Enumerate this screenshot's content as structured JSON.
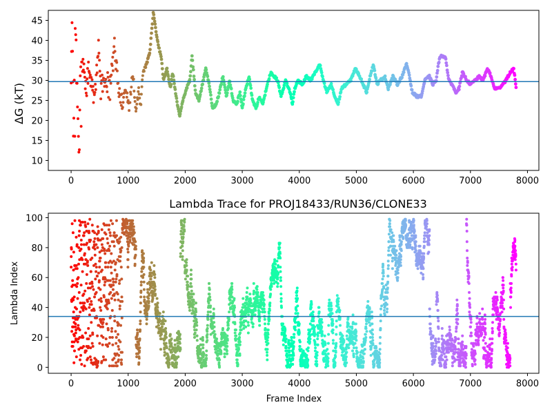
{
  "chart_data": [
    {
      "type": "scatter",
      "title": "",
      "xlabel": "",
      "ylabel": "ΔG (kT)",
      "xlim": [
        -400,
        8200
      ],
      "ylim": [
        7.5,
        47.5
      ],
      "xticks": [
        0,
        1000,
        2000,
        3000,
        4000,
        5000,
        6000,
        7000,
        8000
      ],
      "yticks": [
        10,
        15,
        20,
        25,
        30,
        35,
        40,
        45
      ],
      "hline": 29.7,
      "hline_color": "#1f77b4",
      "colormap": "rainbow (reversed: red at frame 0, violet at last frame)",
      "grid": false,
      "x_max_frame": 7800,
      "trace_keypoints": [
        [
          0,
          32
        ],
        [
          20,
          46
        ],
        [
          40,
          14
        ],
        [
          60,
          36
        ],
        [
          80,
          44
        ],
        [
          100,
          27
        ],
        [
          120,
          20
        ],
        [
          140,
          10
        ],
        [
          160,
          30
        ],
        [
          200,
          34
        ],
        [
          260,
          28
        ],
        [
          320,
          33
        ],
        [
          400,
          25
        ],
        [
          480,
          38
        ],
        [
          520,
          28
        ],
        [
          600,
          32
        ],
        [
          680,
          27
        ],
        [
          760,
          38
        ],
        [
          820,
          30
        ],
        [
          900,
          24
        ],
        [
          960,
          28
        ],
        [
          1020,
          23
        ],
        [
          1080,
          32
        ],
        [
          1140,
          22
        ],
        [
          1180,
          28
        ],
        [
          1220,
          24
        ],
        [
          1260,
          32
        ],
        [
          1320,
          34
        ],
        [
          1380,
          37
        ],
        [
          1440,
          47
        ],
        [
          1500,
          41
        ],
        [
          1540,
          38
        ],
        [
          1580,
          36
        ],
        [
          1620,
          30
        ],
        [
          1680,
          33
        ],
        [
          1740,
          28
        ],
        [
          1780,
          32
        ],
        [
          1840,
          26
        ],
        [
          1900,
          21
        ],
        [
          1960,
          25
        ],
        [
          2020,
          28
        ],
        [
          2080,
          30
        ],
        [
          2120,
          36
        ],
        [
          2180,
          27
        ],
        [
          2240,
          25
        ],
        [
          2300,
          29
        ],
        [
          2360,
          33
        ],
        [
          2420,
          29
        ],
        [
          2480,
          23
        ],
        [
          2540,
          24
        ],
        [
          2600,
          27
        ],
        [
          2660,
          31
        ],
        [
          2720,
          26
        ],
        [
          2780,
          30
        ],
        [
          2840,
          25
        ],
        [
          2900,
          24
        ],
        [
          2960,
          27
        ],
        [
          3000,
          23
        ],
        [
          3060,
          28
        ],
        [
          3120,
          31
        ],
        [
          3180,
          25
        ],
        [
          3240,
          23
        ],
        [
          3300,
          26
        ],
        [
          3360,
          24
        ],
        [
          3440,
          29
        ],
        [
          3500,
          32
        ],
        [
          3560,
          31
        ],
        [
          3620,
          30
        ],
        [
          3680,
          26
        ],
        [
          3760,
          30
        ],
        [
          3840,
          27
        ],
        [
          3880,
          24
        ],
        [
          3920,
          28
        ],
        [
          3980,
          30
        ],
        [
          4060,
          29
        ],
        [
          4120,
          31
        ],
        [
          4200,
          30
        ],
        [
          4280,
          32
        ],
        [
          4360,
          34
        ],
        [
          4420,
          30
        ],
        [
          4480,
          27
        ],
        [
          4560,
          29
        ],
        [
          4620,
          26
        ],
        [
          4680,
          24
        ],
        [
          4740,
          28
        ],
        [
          4820,
          29
        ],
        [
          4900,
          30
        ],
        [
          4980,
          33
        ],
        [
          5060,
          31
        ],
        [
          5120,
          29
        ],
        [
          5180,
          27
        ],
        [
          5240,
          31
        ],
        [
          5300,
          34
        ],
        [
          5360,
          29
        ],
        [
          5420,
          30
        ],
        [
          5500,
          31
        ],
        [
          5560,
          28
        ],
        [
          5640,
          31
        ],
        [
          5720,
          29
        ],
        [
          5800,
          31
        ],
        [
          5880,
          34
        ],
        [
          5920,
          32
        ],
        [
          5980,
          27
        ],
        [
          6060,
          26
        ],
        [
          6140,
          26
        ],
        [
          6200,
          30
        ],
        [
          6280,
          31
        ],
        [
          6340,
          29
        ],
        [
          6400,
          30
        ],
        [
          6460,
          36
        ],
        [
          6560,
          36
        ],
        [
          6620,
          30
        ],
        [
          6680,
          29
        ],
        [
          6740,
          27
        ],
        [
          6800,
          28
        ],
        [
          6860,
          32
        ],
        [
          6940,
          30
        ],
        [
          7000,
          29
        ],
        [
          7080,
          30
        ],
        [
          7160,
          31
        ],
        [
          7220,
          30
        ],
        [
          7300,
          33
        ],
        [
          7360,
          31
        ],
        [
          7420,
          28
        ],
        [
          7500,
          28
        ],
        [
          7560,
          29
        ],
        [
          7620,
          30
        ],
        [
          7700,
          32
        ],
        [
          7760,
          33
        ],
        [
          7800,
          28
        ]
      ]
    },
    {
      "type": "scatter",
      "title": "Lambda Trace for PROJ18433/RUN36/CLONE33",
      "xlabel": "Frame Index",
      "ylabel": "Lambda Index",
      "xlim": [
        -400,
        8200
      ],
      "ylim": [
        -4,
        103
      ],
      "xticks": [
        0,
        1000,
        2000,
        3000,
        4000,
        5000,
        6000,
        7000,
        8000
      ],
      "yticks": [
        0,
        20,
        40,
        60,
        80,
        100
      ],
      "hline": 34,
      "hline_color": "#1f77b4",
      "colormap": "rainbow (reversed: red at frame 0, violet at last frame)",
      "grid": false,
      "x_max_frame": 7800,
      "lambda_range": [
        0,
        99
      ],
      "description_of_points": "dense random-walk lambda indices, one point per frame"
    }
  ],
  "labels": {
    "top_ylabel": "ΔG (kT)",
    "bottom_ylabel": "Lambda Index",
    "bottom_xlabel": "Frame Index",
    "bottom_title": "Lambda Trace for PROJ18433/RUN36/CLONE33"
  }
}
